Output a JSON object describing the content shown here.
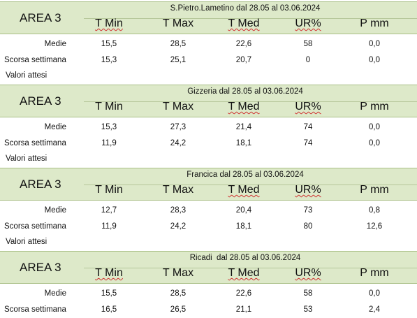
{
  "columns": [
    "T Min",
    "T Max",
    "T Med",
    "UR%",
    "P mm"
  ],
  "row_labels": {
    "medie": "Medie",
    "scorsa": "Scorsa settimana",
    "attesi": "Valori attesi"
  },
  "blocks": [
    {
      "area": "AREA 3",
      "subtitle": "S.Pietro.Lametino dal 28.05 al 03.06.2024",
      "medie": [
        "15,5",
        "28,5",
        "22,6",
        "58",
        "0,0"
      ],
      "scorsa": [
        "15,3",
        "25,1",
        "20,7",
        "0",
        "0,0"
      ]
    },
    {
      "area": "AREA 3",
      "subtitle": "Gizzeria dal 28.05 al 03.06.2024",
      "medie": [
        "15,3",
        "27,3",
        "21,4",
        "74",
        "0,0"
      ],
      "scorsa": [
        "11,9",
        "24,2",
        "18,1",
        "74",
        "0,0"
      ]
    },
    {
      "area": "AREA 3",
      "subtitle": "Francica dal 28.05 al 03.06.2024",
      "medie": [
        "12,7",
        "28,3",
        "20,4",
        "73",
        "0,8"
      ],
      "scorsa": [
        "11,9",
        "24,2",
        "18,1",
        "80",
        "12,6"
      ]
    },
    {
      "area": "AREA 3",
      "subtitle": "Ricadi  dal 28.05 al 03.06.2024",
      "medie": [
        "15,5",
        "28,5",
        "22,6",
        "58",
        "0,0"
      ],
      "scorsa": [
        "16,5",
        "26,5",
        "21,1",
        "53",
        "2,4"
      ]
    }
  ]
}
